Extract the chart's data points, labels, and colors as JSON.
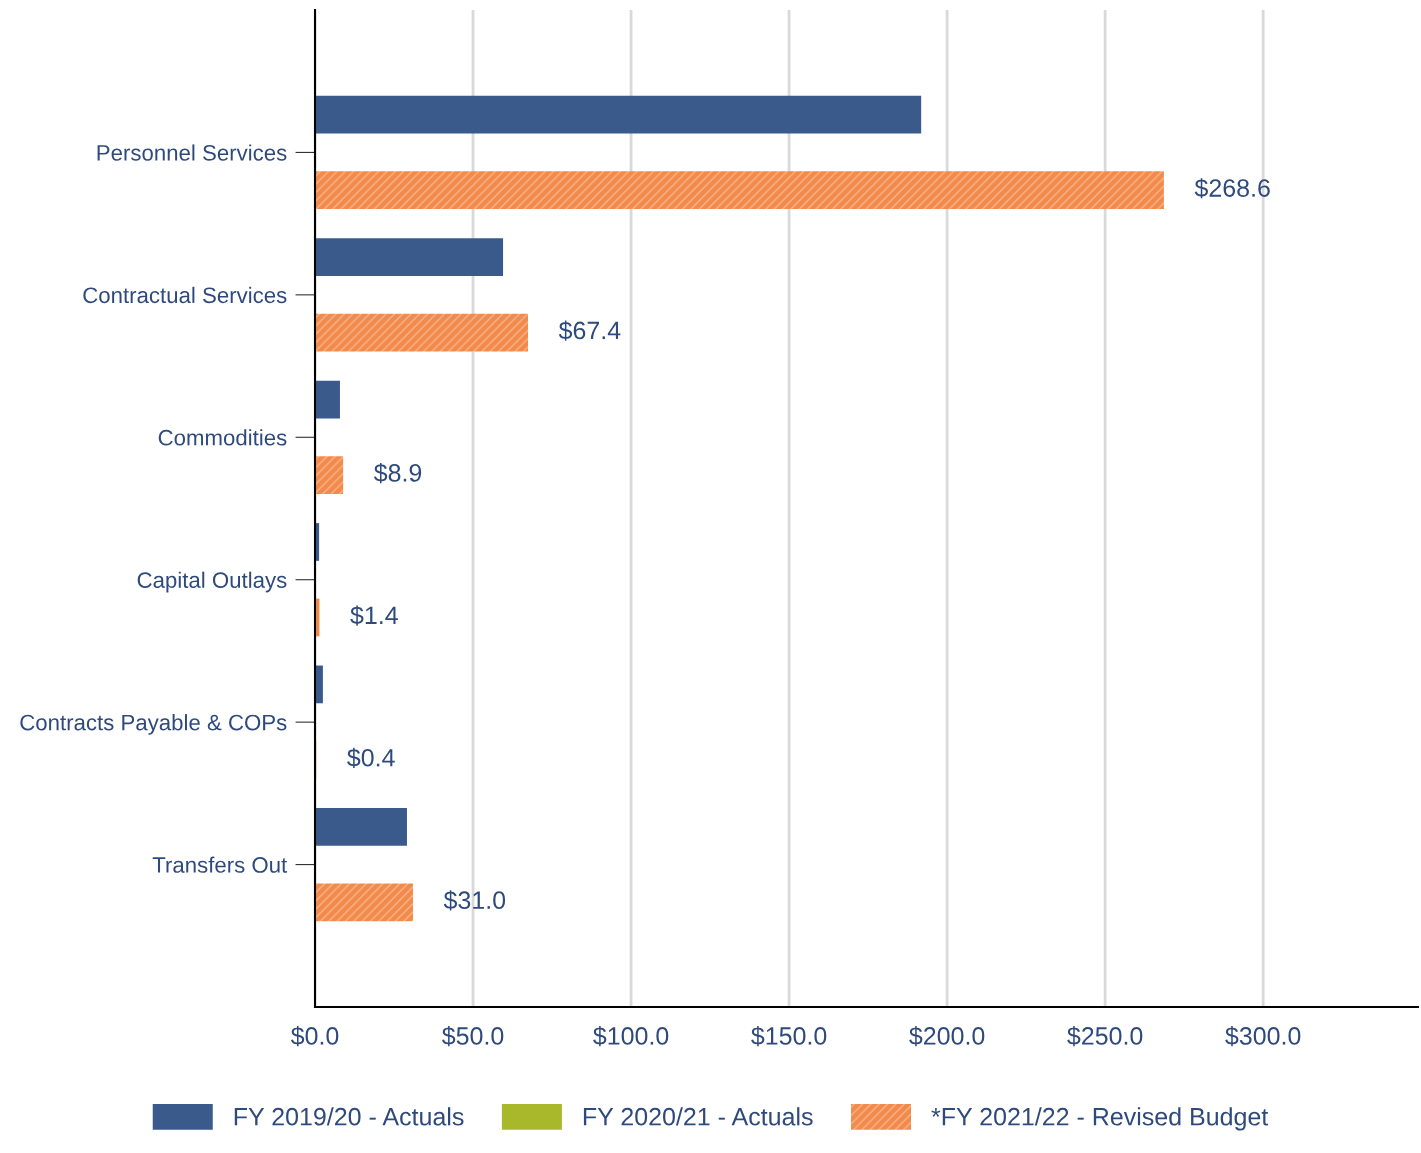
{
  "chart_data": {
    "type": "bar",
    "orientation": "horizontal",
    "categories": [
      "Personnel Services",
      "Contractual Services",
      "Commodities",
      "Capital Outlays",
      "Contracts Payable & COPs",
      "Transfers Out"
    ],
    "series": [
      {
        "name": "FY 2019/20 - Actuals",
        "color": "#3a5a8c",
        "values": [
          191.8,
          59.5,
          7.9,
          1.3,
          2.5,
          29.1
        ]
      },
      {
        "name": "FY 2020/21 - Actuals",
        "color": "#a8b82a",
        "values": [
          null,
          null,
          null,
          null,
          null,
          null
        ]
      },
      {
        "name": "*FY 2021/22 - Revised Budget",
        "color": "#f28a4b",
        "values": [
          268.6,
          67.4,
          8.9,
          1.4,
          0.4,
          31.0
        ],
        "value_labels": [
          "$268.6",
          "$67.4",
          "$8.9",
          "$1.4",
          "$0.4",
          "$31.0"
        ]
      }
    ],
    "xlim": [
      0,
      349
    ],
    "xticks": [
      {
        "value": 0,
        "label": "$0.0"
      },
      {
        "value": 50,
        "label": "$50.0"
      },
      {
        "value": 100,
        "label": "$100.0"
      },
      {
        "value": 150,
        "label": "$150.0"
      },
      {
        "value": 200,
        "label": "$200.0"
      },
      {
        "value": 250,
        "label": "$250.0"
      },
      {
        "value": 300,
        "label": "$300.0"
      }
    ],
    "grid": "x",
    "legend": "bottom"
  }
}
